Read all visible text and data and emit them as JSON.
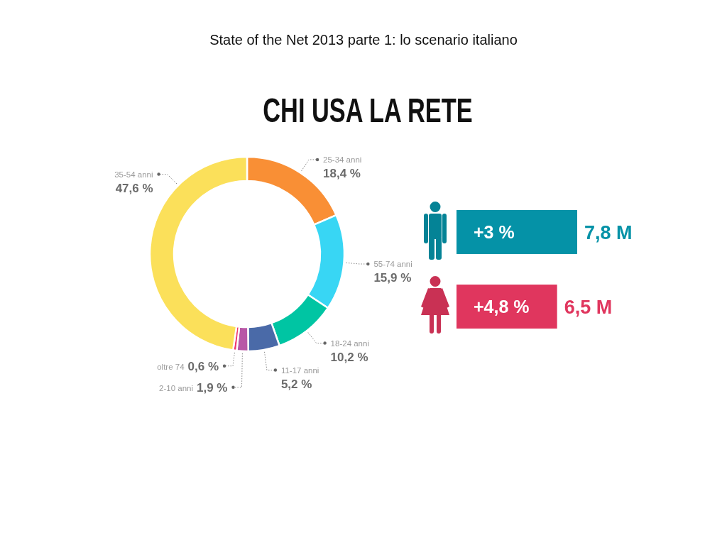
{
  "chart_data": [
    {
      "type": "donut",
      "title": "State of the Net 2013 parte 1: lo scenario italiano",
      "subtitle": "CHI USA LA RETE",
      "categories": [
        "25-34 anni",
        "55-74 anni",
        "18-24 anni",
        "11-17 anni",
        "2-10 anni",
        "oltre 74",
        "35-54 anni"
      ],
      "values": [
        18.4,
        15.9,
        10.2,
        5.2,
        1.9,
        0.6,
        47.6
      ],
      "colors": [
        "#f98f35",
        "#38d6f4",
        "#00c5a3",
        "#4a6aa8",
        "#b857a6",
        "#f0386e",
        "#fbe05a"
      ],
      "value_labels": [
        "18,4 %",
        "15,9 %",
        "10,2 %",
        "5,2 %",
        "1,9 %",
        "0,6 %",
        "47,6 %"
      ]
    },
    {
      "type": "bar",
      "orientation": "horizontal",
      "categories": [
        null,
        null
      ],
      "values": [
        7.8,
        6.5
      ],
      "colors": [
        "#0592a7",
        "#e0365e"
      ],
      "value_labels": [
        "7,8 M",
        "6,5 M"
      ],
      "annotations": [
        "+3 %",
        "+4,8 %"
      ]
    }
  ]
}
